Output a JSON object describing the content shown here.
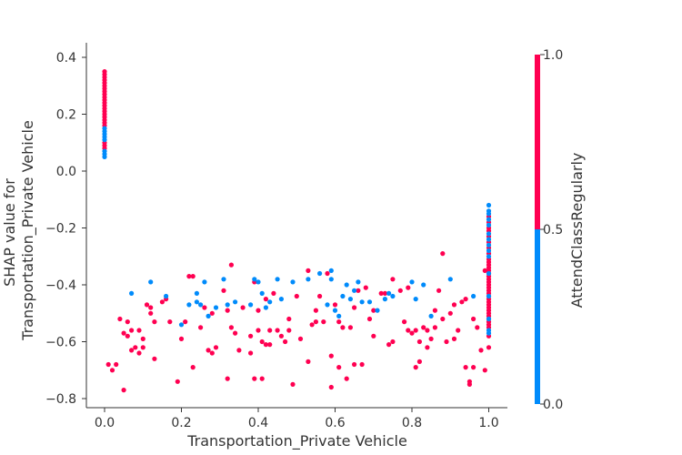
{
  "chart_data": {
    "type": "scatter",
    "xlabel": "Transportation_Private Vehicle",
    "ylabel_lines": [
      "SHAP value for",
      "Transportation_Private Vehicle"
    ],
    "xlim": [
      -0.05,
      1.05
    ],
    "ylim": [
      -0.82,
      0.43
    ],
    "x_ticks": [
      0.0,
      0.2,
      0.4,
      0.6,
      0.8,
      1.0
    ],
    "x_tick_labels": [
      "0.0",
      "0.2",
      "0.4",
      "0.6",
      "0.8",
      "1.0"
    ],
    "y_ticks": [
      0.4,
      0.2,
      0.0,
      -0.2,
      -0.4,
      -0.6,
      -0.8
    ],
    "y_tick_labels": [
      "0.4",
      "0.2",
      "0.0",
      "−0.2",
      "−0.4",
      "−0.6",
      "−0.8"
    ],
    "colorbar": {
      "label": "AttendClassRegularly",
      "range": [
        0.0,
        1.0
      ],
      "ticks": [
        1.0,
        0.5,
        0.0
      ],
      "tick_labels": [
        "1.0",
        "0.5",
        "0.0"
      ],
      "low_color": "#008bfb",
      "high_color": "#ff0051"
    },
    "series": [
      {
        "color": "#ff0051",
        "points": [
          [
            0.0,
            0.35
          ],
          [
            0.0,
            0.34
          ],
          [
            0.0,
            0.33
          ],
          [
            0.0,
            0.32
          ],
          [
            0.0,
            0.31
          ],
          [
            0.0,
            0.3
          ],
          [
            0.0,
            0.29
          ],
          [
            0.0,
            0.28
          ],
          [
            0.0,
            0.27
          ],
          [
            0.0,
            0.26
          ],
          [
            0.0,
            0.25
          ],
          [
            0.0,
            0.24
          ],
          [
            0.0,
            0.23
          ],
          [
            0.0,
            0.22
          ],
          [
            0.0,
            0.21
          ],
          [
            0.0,
            0.2
          ],
          [
            0.0,
            0.19
          ],
          [
            0.0,
            0.18
          ],
          [
            0.0,
            0.17
          ],
          [
            0.0,
            0.16
          ],
          [
            0.0,
            0.1
          ],
          [
            0.0,
            0.09
          ],
          [
            0.0,
            0.08
          ],
          [
            0.01,
            -0.68
          ],
          [
            0.02,
            -0.7
          ],
          [
            0.03,
            -0.68
          ],
          [
            0.04,
            -0.52
          ],
          [
            0.05,
            -0.57
          ],
          [
            0.05,
            -0.77
          ],
          [
            0.06,
            -0.53
          ],
          [
            0.06,
            -0.58
          ],
          [
            0.07,
            -0.56
          ],
          [
            0.07,
            -0.63
          ],
          [
            0.08,
            -0.62
          ],
          [
            0.09,
            -0.56
          ],
          [
            0.09,
            -0.64
          ],
          [
            0.1,
            -0.62
          ],
          [
            0.1,
            -0.59
          ],
          [
            0.11,
            -0.47
          ],
          [
            0.12,
            -0.48
          ],
          [
            0.12,
            -0.5
          ],
          [
            0.13,
            -0.53
          ],
          [
            0.13,
            -0.66
          ],
          [
            0.15,
            -0.46
          ],
          [
            0.16,
            -0.45
          ],
          [
            0.17,
            -0.53
          ],
          [
            0.19,
            -0.74
          ],
          [
            0.2,
            -0.59
          ],
          [
            0.21,
            -0.53
          ],
          [
            0.22,
            -0.37
          ],
          [
            0.23,
            -0.37
          ],
          [
            0.23,
            -0.69
          ],
          [
            0.25,
            -0.55
          ],
          [
            0.26,
            -0.48
          ],
          [
            0.27,
            -0.63
          ],
          [
            0.28,
            -0.64
          ],
          [
            0.28,
            -0.5
          ],
          [
            0.29,
            -0.62
          ],
          [
            0.31,
            -0.42
          ],
          [
            0.32,
            -0.73
          ],
          [
            0.32,
            -0.49
          ],
          [
            0.33,
            -0.33
          ],
          [
            0.33,
            -0.55
          ],
          [
            0.34,
            -0.57
          ],
          [
            0.35,
            -0.63
          ],
          [
            0.36,
            -0.48
          ],
          [
            0.38,
            -0.64
          ],
          [
            0.38,
            -0.58
          ],
          [
            0.39,
            -0.39
          ],
          [
            0.39,
            -0.73
          ],
          [
            0.4,
            -0.49
          ],
          [
            0.4,
            -0.56
          ],
          [
            0.41,
            -0.6
          ],
          [
            0.41,
            -0.73
          ],
          [
            0.42,
            -0.61
          ],
          [
            0.42,
            -0.45
          ],
          [
            0.43,
            -0.56
          ],
          [
            0.43,
            -0.61
          ],
          [
            0.44,
            -0.43
          ],
          [
            0.45,
            -0.56
          ],
          [
            0.46,
            -0.58
          ],
          [
            0.47,
            -0.6
          ],
          [
            0.48,
            -0.52
          ],
          [
            0.48,
            -0.56
          ],
          [
            0.49,
            -0.75
          ],
          [
            0.5,
            -0.44
          ],
          [
            0.51,
            -0.59
          ],
          [
            0.53,
            -0.67
          ],
          [
            0.53,
            -0.35
          ],
          [
            0.54,
            -0.54
          ],
          [
            0.55,
            -0.53
          ],
          [
            0.55,
            -0.49
          ],
          [
            0.56,
            -0.44
          ],
          [
            0.57,
            -0.53
          ],
          [
            0.58,
            -0.36
          ],
          [
            0.59,
            -0.65
          ],
          [
            0.59,
            -0.76
          ],
          [
            0.6,
            -0.47
          ],
          [
            0.61,
            -0.53
          ],
          [
            0.61,
            -0.69
          ],
          [
            0.62,
            -0.55
          ],
          [
            0.63,
            -0.73
          ],
          [
            0.64,
            -0.55
          ],
          [
            0.65,
            -0.48
          ],
          [
            0.65,
            -0.68
          ],
          [
            0.66,
            -0.42
          ],
          [
            0.67,
            -0.68
          ],
          [
            0.68,
            -0.41
          ],
          [
            0.69,
            -0.52
          ],
          [
            0.7,
            -0.49
          ],
          [
            0.7,
            -0.58
          ],
          [
            0.72,
            -0.43
          ],
          [
            0.73,
            -0.43
          ],
          [
            0.74,
            -0.61
          ],
          [
            0.75,
            -0.6
          ],
          [
            0.75,
            -0.38
          ],
          [
            0.77,
            -0.42
          ],
          [
            0.78,
            -0.53
          ],
          [
            0.79,
            -0.41
          ],
          [
            0.79,
            -0.56
          ],
          [
            0.8,
            -0.57
          ],
          [
            0.81,
            -0.69
          ],
          [
            0.81,
            -0.56
          ],
          [
            0.82,
            -0.6
          ],
          [
            0.82,
            -0.67
          ],
          [
            0.83,
            -0.55
          ],
          [
            0.84,
            -0.56
          ],
          [
            0.84,
            -0.62
          ],
          [
            0.85,
            -0.59
          ],
          [
            0.86,
            -0.49
          ],
          [
            0.86,
            -0.55
          ],
          [
            0.87,
            -0.42
          ],
          [
            0.88,
            -0.29
          ],
          [
            0.88,
            -0.52
          ],
          [
            0.89,
            -0.6
          ],
          [
            0.9,
            -0.5
          ],
          [
            0.91,
            -0.47
          ],
          [
            0.91,
            -0.59
          ],
          [
            0.92,
            -0.56
          ],
          [
            0.93,
            -0.46
          ],
          [
            0.94,
            -0.69
          ],
          [
            0.94,
            -0.45
          ],
          [
            0.95,
            -0.75
          ],
          [
            0.95,
            -0.74
          ],
          [
            0.96,
            -0.69
          ],
          [
            0.96,
            -0.52
          ],
          [
            0.97,
            -0.55
          ],
          [
            0.98,
            -0.63
          ],
          [
            0.99,
            -0.35
          ],
          [
            0.99,
            -0.7
          ],
          [
            1.0,
            -0.16
          ],
          [
            1.0,
            -0.18
          ],
          [
            1.0,
            -0.2
          ],
          [
            1.0,
            -0.21
          ],
          [
            1.0,
            -0.23
          ],
          [
            1.0,
            -0.25
          ],
          [
            1.0,
            -0.27
          ],
          [
            1.0,
            -0.29
          ],
          [
            1.0,
            -0.31
          ],
          [
            1.0,
            -0.32
          ],
          [
            1.0,
            -0.33
          ],
          [
            1.0,
            -0.34
          ],
          [
            1.0,
            -0.35
          ],
          [
            1.0,
            -0.36
          ],
          [
            1.0,
            -0.37
          ],
          [
            1.0,
            -0.38
          ],
          [
            1.0,
            -0.39
          ],
          [
            1.0,
            -0.4
          ],
          [
            1.0,
            -0.41
          ],
          [
            1.0,
            -0.42
          ],
          [
            1.0,
            -0.43
          ],
          [
            1.0,
            -0.44
          ],
          [
            1.0,
            -0.45
          ],
          [
            1.0,
            -0.46
          ],
          [
            1.0,
            -0.47
          ],
          [
            1.0,
            -0.48
          ],
          [
            1.0,
            -0.49
          ],
          [
            1.0,
            -0.5
          ],
          [
            1.0,
            -0.51
          ],
          [
            1.0,
            -0.52
          ],
          [
            1.0,
            -0.53
          ],
          [
            1.0,
            -0.54
          ],
          [
            1.0,
            -0.55
          ],
          [
            1.0,
            -0.58
          ],
          [
            1.0,
            -0.62
          ]
        ]
      },
      {
        "color": "#008bfb",
        "points": [
          [
            0.0,
            0.15
          ],
          [
            0.0,
            0.14
          ],
          [
            0.0,
            0.13
          ],
          [
            0.0,
            0.12
          ],
          [
            0.0,
            0.11
          ],
          [
            0.0,
            0.07
          ],
          [
            0.0,
            0.06
          ],
          [
            0.0,
            0.05
          ],
          [
            0.07,
            -0.43
          ],
          [
            0.12,
            -0.39
          ],
          [
            0.16,
            -0.44
          ],
          [
            0.2,
            -0.54
          ],
          [
            0.22,
            -0.47
          ],
          [
            0.24,
            -0.43
          ],
          [
            0.24,
            -0.46
          ],
          [
            0.25,
            -0.47
          ],
          [
            0.26,
            -0.39
          ],
          [
            0.27,
            -0.51
          ],
          [
            0.29,
            -0.48
          ],
          [
            0.31,
            -0.38
          ],
          [
            0.32,
            -0.47
          ],
          [
            0.34,
            -0.46
          ],
          [
            0.38,
            -0.47
          ],
          [
            0.39,
            -0.38
          ],
          [
            0.4,
            -0.39
          ],
          [
            0.41,
            -0.43
          ],
          [
            0.42,
            -0.48
          ],
          [
            0.43,
            -0.46
          ],
          [
            0.45,
            -0.38
          ],
          [
            0.46,
            -0.45
          ],
          [
            0.49,
            -0.39
          ],
          [
            0.53,
            -0.38
          ],
          [
            0.56,
            -0.36
          ],
          [
            0.58,
            -0.47
          ],
          [
            0.59,
            -0.35
          ],
          [
            0.59,
            -0.38
          ],
          [
            0.6,
            -0.49
          ],
          [
            0.61,
            -0.51
          ],
          [
            0.62,
            -0.44
          ],
          [
            0.63,
            -0.4
          ],
          [
            0.64,
            -0.45
          ],
          [
            0.65,
            -0.42
          ],
          [
            0.66,
            -0.39
          ],
          [
            0.67,
            -0.46
          ],
          [
            0.69,
            -0.46
          ],
          [
            0.71,
            -0.49
          ],
          [
            0.73,
            -0.45
          ],
          [
            0.74,
            -0.43
          ],
          [
            0.75,
            -0.44
          ],
          [
            0.8,
            -0.39
          ],
          [
            0.81,
            -0.45
          ],
          [
            0.83,
            -0.4
          ],
          [
            0.85,
            -0.51
          ],
          [
            0.9,
            -0.38
          ],
          [
            0.96,
            -0.44
          ],
          [
            1.0,
            -0.12
          ],
          [
            1.0,
            -0.14
          ],
          [
            1.0,
            -0.15
          ],
          [
            1.0,
            -0.17
          ],
          [
            1.0,
            -0.19
          ],
          [
            1.0,
            -0.22
          ],
          [
            1.0,
            -0.24
          ],
          [
            1.0,
            -0.26
          ],
          [
            1.0,
            -0.28
          ],
          [
            1.0,
            -0.3
          ],
          [
            1.0,
            -0.36
          ],
          [
            1.0,
            -0.44
          ],
          [
            1.0,
            -0.52
          ],
          [
            1.0,
            -0.56
          ],
          [
            1.0,
            -0.57
          ]
        ]
      }
    ]
  }
}
